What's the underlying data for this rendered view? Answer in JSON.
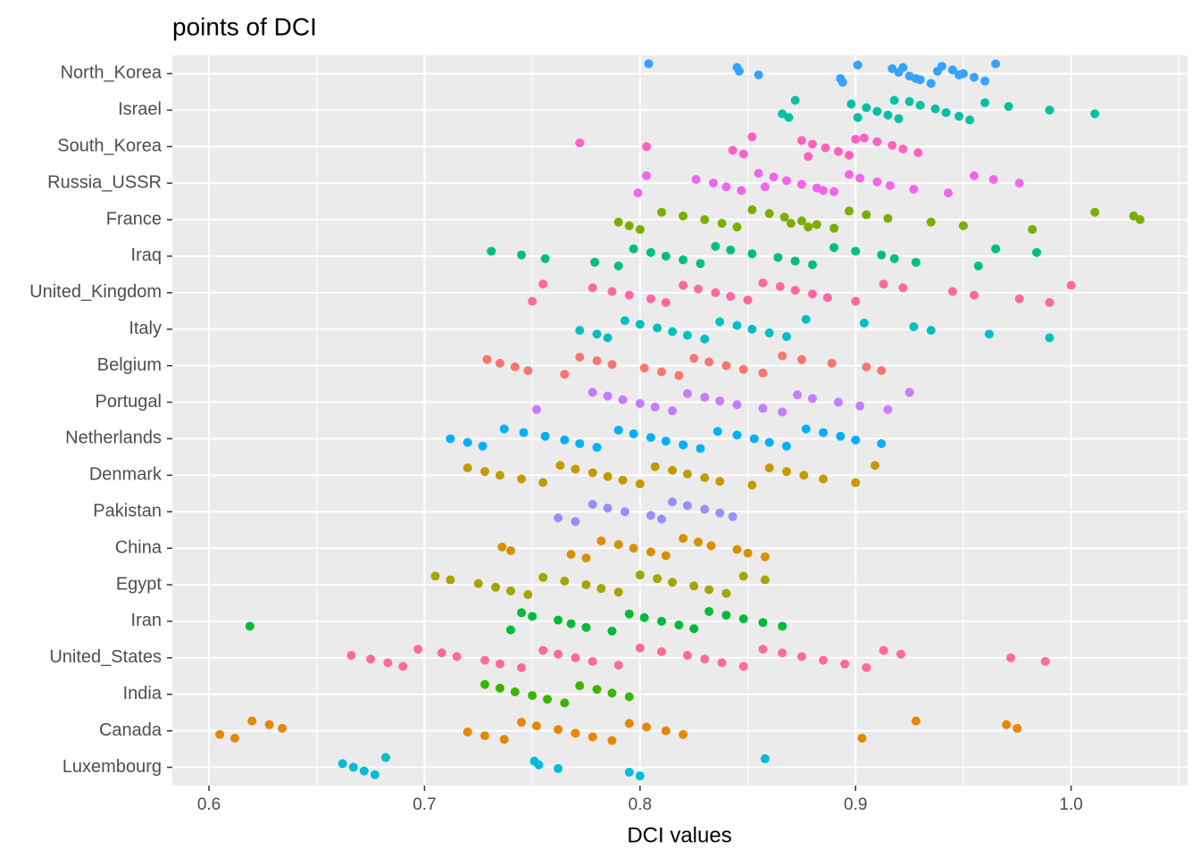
{
  "chart_data": {
    "type": "strip",
    "title": "points of DCI",
    "x_label": "DCI values",
    "xlim": [
      0.583,
      1.054
    ],
    "xticks": [
      0.6,
      0.7,
      0.8,
      0.9,
      {
        "value": 1,
        "label": "1.0"
      }
    ],
    "grid": true,
    "categories": [
      "North_Korea",
      "Israel",
      "South_Korea",
      "Russia_USSR",
      "France",
      "Iraq",
      "United_Kingdom",
      "Italy",
      "Belgium",
      "Portugal",
      "Netherlands",
      "Denmark",
      "Pakistan",
      "China",
      "Egypt",
      "Iran",
      "United_States",
      "India",
      "Canada",
      "Luxembourg"
    ],
    "colors": [
      "#35A2FF",
      "#00C1A3",
      "#FF61C3",
      "#F066EA",
      "#7CAE00",
      "#00BF7D",
      "#FF67A4",
      "#00BFC4",
      "#F8766D",
      "#C77CFF",
      "#00B0F6",
      "#C49A00",
      "#9590FF",
      "#D89000",
      "#A3A500",
      "#00BA38",
      "#FF6C91",
      "#39B600",
      "#E58700",
      "#00BCD8"
    ],
    "values": [
      [
        0.804,
        0.845,
        0.846,
        0.855,
        0.893,
        0.894,
        0.901,
        0.917,
        0.92,
        0.925,
        0.93,
        0.935,
        0.94,
        0.945,
        0.95,
        0.955,
        0.96,
        0.965,
        0.922,
        0.938,
        0.948,
        0.928
      ],
      [
        0.866,
        0.869,
        0.872,
        0.898,
        0.905,
        0.91,
        0.915,
        0.92,
        0.925,
        0.93,
        0.937,
        0.942,
        0.948,
        0.953,
        0.96,
        0.971,
        0.99,
        1.011,
        0.901,
        0.918
      ],
      [
        0.772,
        0.803,
        0.843,
        0.848,
        0.852,
        0.875,
        0.88,
        0.886,
        0.892,
        0.897,
        0.904,
        0.91,
        0.917,
        0.922,
        0.929,
        0.878,
        0.9
      ],
      [
        0.799,
        0.803,
        0.826,
        0.834,
        0.84,
        0.847,
        0.855,
        0.862,
        0.868,
        0.875,
        0.882,
        0.89,
        0.897,
        0.902,
        0.91,
        0.916,
        0.927,
        0.943,
        0.955,
        0.964,
        0.976,
        0.858,
        0.885
      ],
      [
        0.79,
        0.795,
        0.8,
        0.81,
        0.82,
        0.83,
        0.838,
        0.845,
        0.852,
        0.86,
        0.867,
        0.875,
        0.882,
        0.89,
        0.897,
        0.905,
        0.915,
        0.935,
        0.95,
        0.982,
        1.011,
        1.029,
        1.032,
        0.87,
        0.878
      ],
      [
        0.731,
        0.745,
        0.756,
        0.779,
        0.79,
        0.797,
        0.805,
        0.812,
        0.82,
        0.828,
        0.835,
        0.842,
        0.852,
        0.864,
        0.872,
        0.88,
        0.89,
        0.9,
        0.912,
        0.918,
        0.928,
        0.957,
        0.965,
        0.984
      ],
      [
        0.75,
        0.755,
        0.778,
        0.787,
        0.795,
        0.805,
        0.812,
        0.82,
        0.827,
        0.835,
        0.842,
        0.85,
        0.857,
        0.865,
        0.872,
        0.88,
        0.887,
        0.9,
        0.913,
        0.922,
        0.945,
        0.955,
        0.976,
        0.99,
        1.0
      ],
      [
        0.772,
        0.78,
        0.785,
        0.793,
        0.8,
        0.808,
        0.815,
        0.822,
        0.83,
        0.837,
        0.845,
        0.852,
        0.86,
        0.868,
        0.877,
        0.904,
        0.927,
        0.935,
        0.962,
        0.99
      ],
      [
        0.729,
        0.735,
        0.742,
        0.748,
        0.765,
        0.772,
        0.78,
        0.787,
        0.802,
        0.81,
        0.818,
        0.825,
        0.832,
        0.84,
        0.848,
        0.857,
        0.866,
        0.875,
        0.889,
        0.905,
        0.912
      ],
      [
        0.752,
        0.778,
        0.785,
        0.792,
        0.8,
        0.807,
        0.815,
        0.822,
        0.83,
        0.837,
        0.845,
        0.857,
        0.866,
        0.873,
        0.88,
        0.892,
        0.902,
        0.915,
        0.925
      ],
      [
        0.712,
        0.72,
        0.727,
        0.737,
        0.746,
        0.756,
        0.765,
        0.772,
        0.78,
        0.79,
        0.797,
        0.805,
        0.812,
        0.82,
        0.828,
        0.836,
        0.845,
        0.853,
        0.86,
        0.868,
        0.877,
        0.885,
        0.893,
        0.9,
        0.912
      ],
      [
        0.72,
        0.728,
        0.735,
        0.745,
        0.755,
        0.763,
        0.77,
        0.778,
        0.785,
        0.792,
        0.8,
        0.807,
        0.815,
        0.822,
        0.83,
        0.837,
        0.852,
        0.86,
        0.868,
        0.876,
        0.885,
        0.9,
        0.909
      ],
      [
        0.762,
        0.77,
        0.778,
        0.785,
        0.793,
        0.805,
        0.81,
        0.815,
        0.822,
        0.83,
        0.837,
        0.843
      ],
      [
        0.736,
        0.74,
        0.768,
        0.775,
        0.782,
        0.79,
        0.797,
        0.805,
        0.812,
        0.82,
        0.827,
        0.833,
        0.845,
        0.85,
        0.858
      ],
      [
        0.705,
        0.712,
        0.725,
        0.733,
        0.74,
        0.748,
        0.755,
        0.765,
        0.775,
        0.782,
        0.79,
        0.8,
        0.808,
        0.815,
        0.825,
        0.832,
        0.84,
        0.848,
        0.858
      ],
      [
        0.619,
        0.74,
        0.745,
        0.75,
        0.762,
        0.768,
        0.775,
        0.787,
        0.795,
        0.802,
        0.81,
        0.818,
        0.825,
        0.832,
        0.84,
        0.848,
        0.857,
        0.866
      ],
      [
        0.666,
        0.675,
        0.683,
        0.69,
        0.697,
        0.708,
        0.715,
        0.728,
        0.735,
        0.745,
        0.755,
        0.762,
        0.77,
        0.778,
        0.79,
        0.8,
        0.81,
        0.822,
        0.83,
        0.838,
        0.848,
        0.857,
        0.866,
        0.875,
        0.885,
        0.895,
        0.905,
        0.913,
        0.921,
        0.972,
        0.988
      ],
      [
        0.728,
        0.735,
        0.742,
        0.75,
        0.757,
        0.765,
        0.772,
        0.78,
        0.787,
        0.795
      ],
      [
        0.605,
        0.612,
        0.62,
        0.628,
        0.634,
        0.72,
        0.728,
        0.737,
        0.745,
        0.752,
        0.762,
        0.77,
        0.778,
        0.787,
        0.795,
        0.803,
        0.812,
        0.82,
        0.903,
        0.928,
        0.97,
        0.975
      ],
      [
        0.662,
        0.667,
        0.672,
        0.677,
        0.682,
        0.751,
        0.753,
        0.762,
        0.795,
        0.8,
        0.858
      ]
    ]
  }
}
